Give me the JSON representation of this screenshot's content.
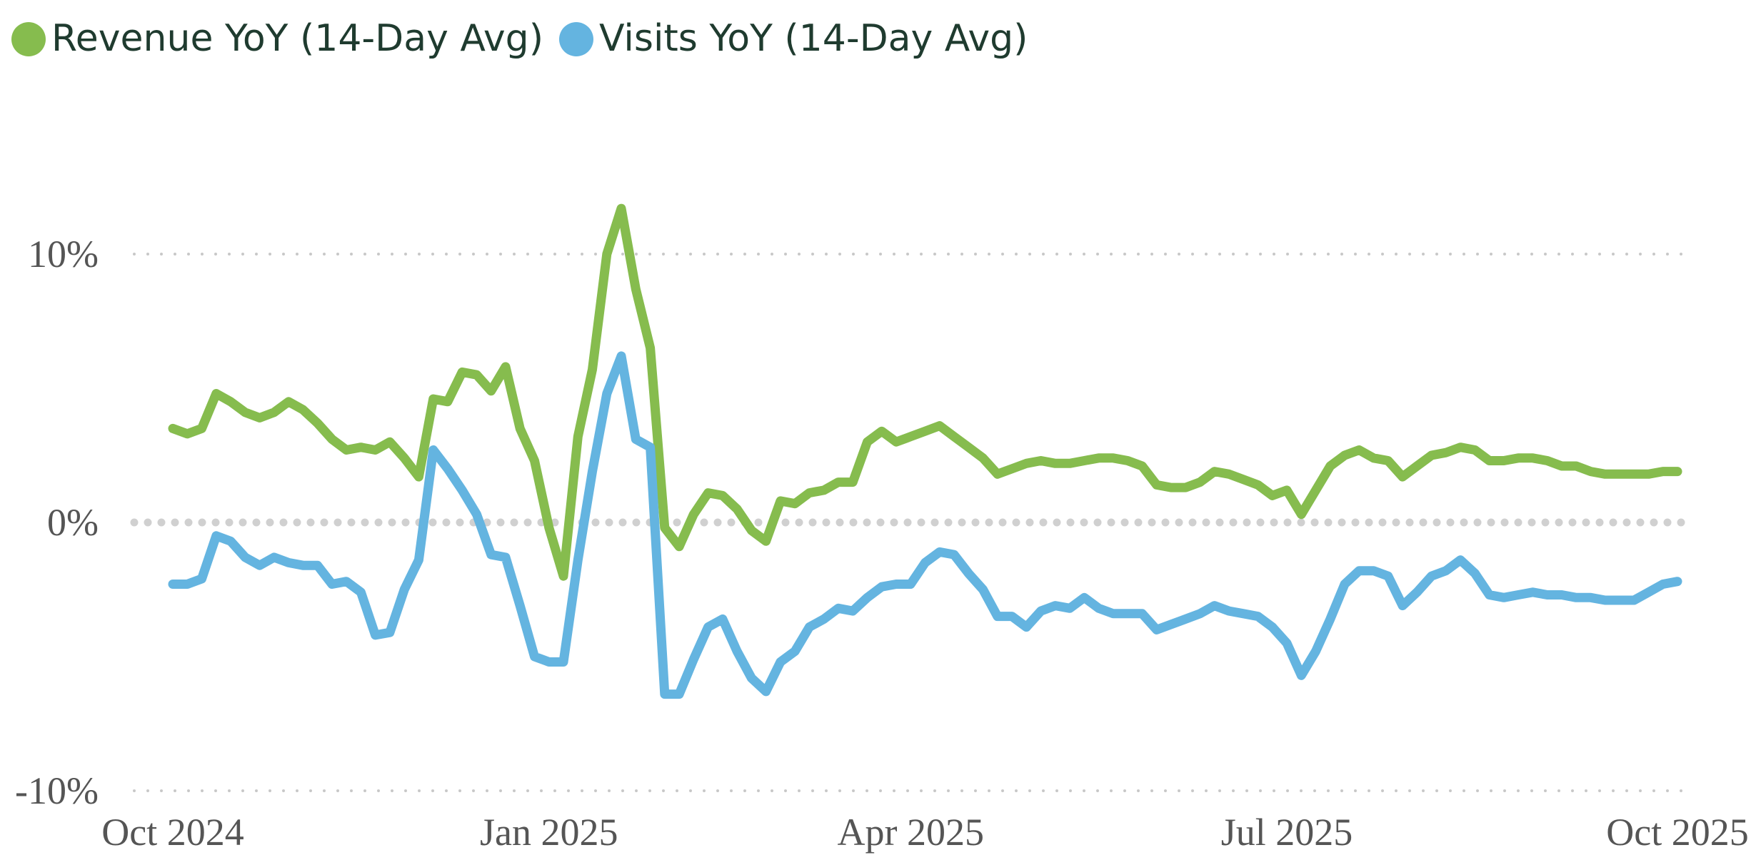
{
  "chart_data": {
    "type": "line",
    "categories": [
      "Oct 2024",
      null,
      null,
      null,
      null,
      null,
      null,
      null,
      null,
      null,
      null,
      null,
      null,
      null,
      null,
      null,
      null,
      null,
      null,
      null,
      null,
      null,
      null,
      null,
      null,
      null,
      "Jan 2025",
      null,
      null,
      null,
      null,
      null,
      null,
      null,
      null,
      null,
      null,
      null,
      null,
      null,
      null,
      null,
      null,
      null,
      null,
      null,
      null,
      null,
      null,
      null,
      null,
      "Apr 2025",
      null,
      null,
      null,
      null,
      null,
      null,
      null,
      null,
      null,
      null,
      null,
      null,
      null,
      null,
      null,
      null,
      null,
      null,
      null,
      null,
      null,
      null,
      null,
      null,
      null,
      "Jul 2025",
      null,
      null,
      null,
      null,
      null,
      null,
      null,
      null,
      null,
      null,
      null,
      null,
      null,
      null,
      null,
      null,
      null,
      null,
      null,
      null,
      null,
      null,
      null,
      null,
      null,
      null,
      "Oct 2025"
    ],
    "series": [
      {
        "name": "Revenue YoY (14-Day Avg)",
        "color": "#86bc4e",
        "values": [
          3.5,
          3.3,
          3.5,
          4.8,
          4.5,
          4.1,
          3.9,
          4.1,
          4.5,
          4.2,
          3.7,
          3.1,
          2.7,
          2.8,
          2.7,
          3.0,
          2.4,
          1.7,
          4.6,
          4.5,
          5.6,
          5.5,
          4.9,
          5.8,
          3.5,
          2.3,
          -0.2,
          -2.0,
          3.2,
          5.7,
          10.0,
          11.7,
          8.7,
          6.5,
          -0.2,
          -0.9,
          0.3,
          1.1,
          1.0,
          0.5,
          -0.3,
          -0.7,
          0.8,
          0.7,
          1.1,
          1.2,
          1.5,
          1.5,
          3.0,
          3.4,
          3.0,
          3.2,
          3.4,
          3.6,
          3.2,
          2.8,
          2.4,
          1.8,
          2.0,
          2.2,
          2.3,
          2.2,
          2.2,
          2.3,
          2.4,
          2.4,
          2.3,
          2.1,
          1.4,
          1.3,
          1.3,
          1.5,
          1.9,
          1.8,
          1.6,
          1.4,
          1.0,
          1.2,
          0.3,
          1.2,
          2.1,
          2.5,
          2.7,
          2.4,
          2.3,
          1.7,
          2.1,
          2.5,
          2.6,
          2.8,
          2.7,
          2.3,
          2.3,
          2.4,
          2.4,
          2.3,
          2.1,
          2.1,
          1.9,
          1.8,
          1.8,
          1.8,
          1.8,
          1.9,
          1.9
        ]
      },
      {
        "name": "Visits YoY (14-Day Avg)",
        "color": "#64b4e0",
        "values": [
          -2.3,
          -2.3,
          -2.1,
          -0.5,
          -0.7,
          -1.3,
          -1.6,
          -1.3,
          -1.5,
          -1.6,
          -1.6,
          -2.3,
          -2.2,
          -2.6,
          -4.2,
          -4.1,
          -2.5,
          -1.4,
          2.7,
          2.0,
          1.2,
          0.3,
          -1.2,
          -1.3,
          -3.1,
          -5.0,
          -5.2,
          -5.2,
          -1.4,
          1.9,
          4.8,
          6.2,
          3.1,
          2.8,
          -6.4,
          -6.4,
          -5.1,
          -3.9,
          -3.6,
          -4.8,
          -5.8,
          -6.3,
          -5.2,
          -4.8,
          -3.9,
          -3.6,
          -3.2,
          -3.3,
          -2.8,
          -2.4,
          -2.3,
          -2.3,
          -1.5,
          -1.1,
          -1.2,
          -1.9,
          -2.5,
          -3.5,
          -3.5,
          -3.9,
          -3.3,
          -3.1,
          -3.2,
          -2.8,
          -3.2,
          -3.4,
          -3.4,
          -3.4,
          -4.0,
          -3.8,
          -3.6,
          -3.4,
          -3.1,
          -3.3,
          -3.4,
          -3.5,
          -3.9,
          -4.5,
          -5.7,
          -4.8,
          -3.6,
          -2.3,
          -1.8,
          -1.8,
          -2.0,
          -3.1,
          -2.6,
          -2.0,
          -1.8,
          -1.4,
          -1.9,
          -2.7,
          -2.8,
          -2.7,
          -2.6,
          -2.7,
          -2.7,
          -2.8,
          -2.8,
          -2.9,
          -2.9,
          -2.9,
          -2.6,
          -2.3,
          -2.2
        ]
      }
    ],
    "ylim": [
      -10,
      15
    ],
    "yticks": [
      {
        "value": -10,
        "label": "-10%"
      },
      {
        "value": 0,
        "label": "0%"
      },
      {
        "value": 10,
        "label": "10%"
      }
    ],
    "grid": true,
    "legend": "top-left"
  }
}
